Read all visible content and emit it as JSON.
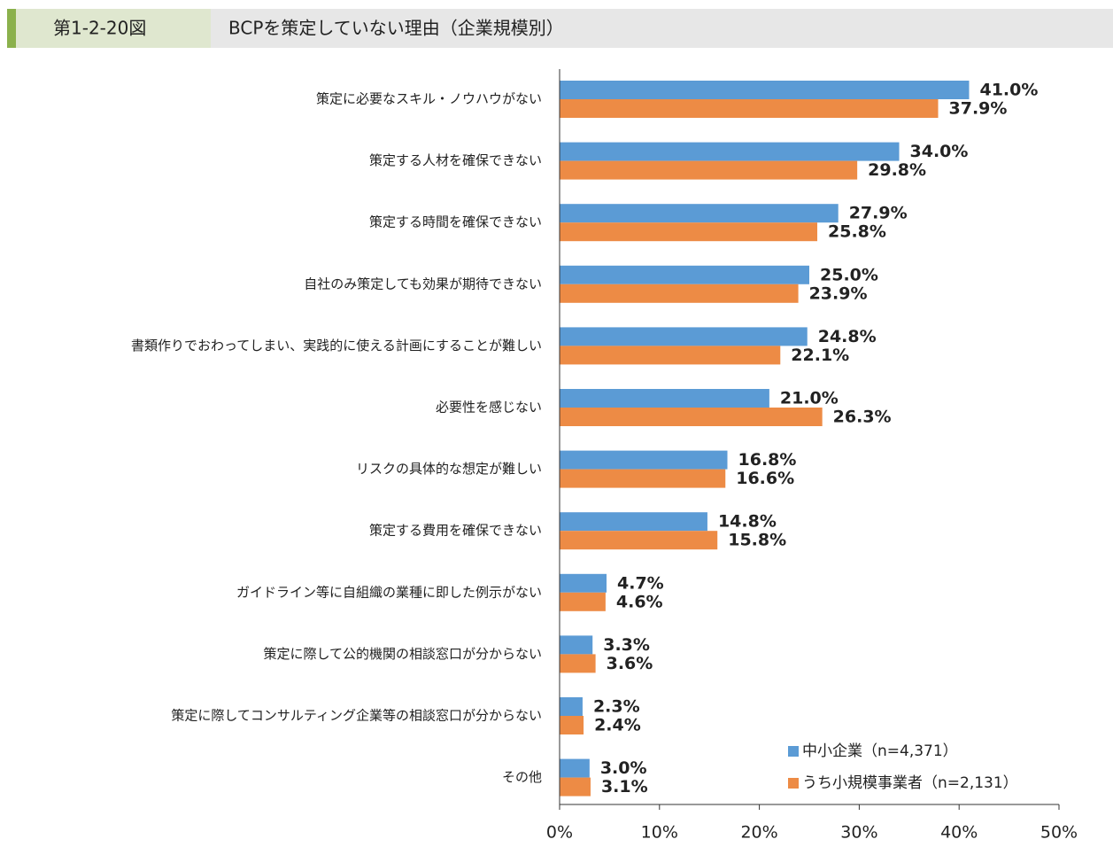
{
  "figure_label": "第1-2-20図",
  "chart_data": {
    "type": "hbar",
    "title": "BCPを策定していない理由（企業規模別）",
    "categories": [
      "策定に必要なスキル・ノウハウがない",
      "策定する人材を確保できない",
      "策定する時間を確保できない",
      "自社のみ策定しても効果が期待できない",
      "書類作りでおわってしまい、実践的に使える計画にすることが難しい",
      "必要性を感じない",
      "リスクの具体的な想定が難しい",
      "策定する費用を確保できない",
      "ガイドライン等に自組織の業種に即した例示がない",
      "策定に際して公的機関の相談窓口が分からない",
      "策定に際してコンサルティング企業等の相談窓口が分からない",
      "その他"
    ],
    "series": [
      {
        "name": "中小企業（n=4,371）",
        "color": "#5b9bd5",
        "values": [
          41.0,
          34.0,
          27.9,
          25.0,
          24.8,
          21.0,
          16.8,
          14.8,
          4.7,
          3.3,
          2.3,
          3.0
        ],
        "value_labels": [
          "41.0%",
          "34.0%",
          "27.9%",
          "25.0%",
          "24.8%",
          "21.0%",
          "16.8%",
          "14.8%",
          "4.7%",
          "3.3%",
          "2.3%",
          "3.0%"
        ]
      },
      {
        "name": "うち小規模事業者（n=2,131）",
        "color": "#ed8b45",
        "values": [
          37.9,
          29.8,
          25.8,
          23.9,
          22.1,
          26.3,
          16.6,
          15.8,
          4.6,
          3.6,
          2.4,
          3.1
        ],
        "value_labels": [
          "37.9%",
          "29.8%",
          "25.8%",
          "23.9%",
          "22.1%",
          "26.3%",
          "16.6%",
          "15.8%",
          "4.6%",
          "3.6%",
          "2.4%",
          "3.1%"
        ]
      }
    ],
    "xlim": [
      0,
      50
    ],
    "xticks": [
      {
        "value": 0,
        "label": "0%"
      },
      {
        "value": 10,
        "label": "10%"
      },
      {
        "value": 20,
        "label": "20%"
      },
      {
        "value": 30,
        "label": "30%"
      },
      {
        "value": 40,
        "label": "40%"
      },
      {
        "value": 50,
        "label": "50%"
      }
    ],
    "legend": "lower right"
  }
}
